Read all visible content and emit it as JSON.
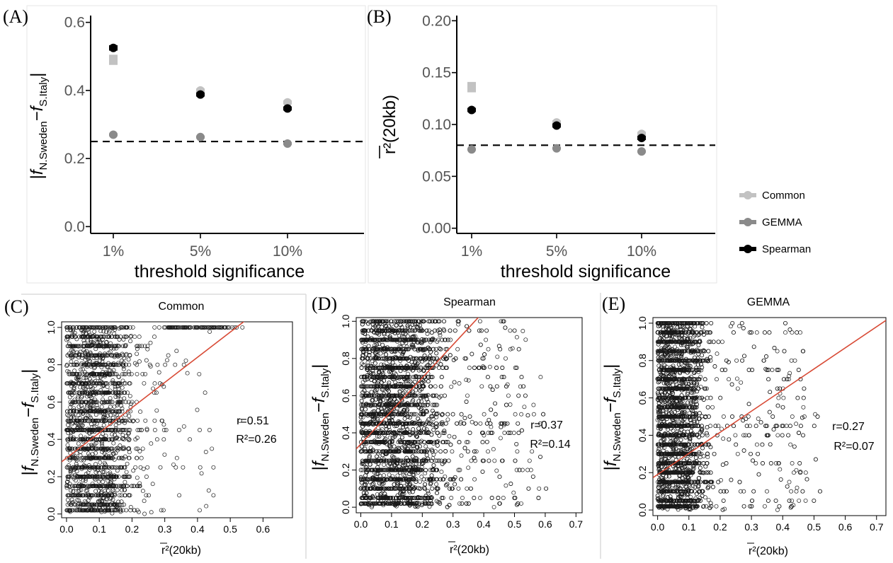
{
  "figure": {
    "panel_letters": [
      "(A)",
      "(B)",
      "(C)",
      "(D)",
      "(E)"
    ]
  },
  "legend": {
    "items": [
      {
        "label": "Common",
        "color": "#c2c2c2"
      },
      {
        "label": "GEMMA",
        "color": "#8a8a8a"
      },
      {
        "label": "Spearman",
        "color": "#000000"
      }
    ]
  },
  "chart_data": [
    {
      "panel": "(A)",
      "type": "scatter",
      "xlabel": "threshold significance",
      "ylabel_parts": {
        "abs": "|",
        "f": "f",
        "sub1": "N.Sweden",
        "minus": "−",
        "sub2": "S.Italy",
        "end": "|"
      },
      "categories": [
        "1%",
        "5%",
        "10%"
      ],
      "ylim": [
        -0.02,
        0.62
      ],
      "yticks": [
        "0.0",
        "0.2",
        "0.4",
        "0.6"
      ],
      "ytick_values": [
        0.0,
        0.2,
        0.4,
        0.6
      ],
      "reference_line": 0.25,
      "series": [
        {
          "name": "Common",
          "color": "#c2c2c2",
          "values": [
            0.49,
            0.4,
            0.365
          ],
          "errors": [
            0.015,
            0.006,
            0.006
          ]
        },
        {
          "name": "GEMMA",
          "color": "#8a8a8a",
          "values": [
            0.27,
            0.263,
            0.244
          ],
          "errors": [
            0.004,
            0.004,
            0.004
          ]
        },
        {
          "name": "Spearman",
          "color": "#000000",
          "values": [
            0.525,
            0.388,
            0.347
          ],
          "errors": [
            0.008,
            0.006,
            0.006
          ]
        }
      ]
    },
    {
      "panel": "(B)",
      "type": "scatter",
      "xlabel": "threshold significance",
      "ylabel": "r²(20kb)",
      "categories": [
        "1%",
        "5%",
        "10%"
      ],
      "ylim": [
        -0.005,
        0.205
      ],
      "yticks": [
        "0.00",
        "0.05",
        "0.10",
        "0.15",
        "0.20"
      ],
      "ytick_values": [
        0.0,
        0.05,
        0.1,
        0.15,
        0.2
      ],
      "reference_line": 0.08,
      "series": [
        {
          "name": "Common",
          "color": "#c2c2c2",
          "values": [
            0.136,
            0.102,
            0.091
          ],
          "errors": [
            0.005,
            0.002,
            0.002
          ]
        },
        {
          "name": "GEMMA",
          "color": "#8a8a8a",
          "values": [
            0.076,
            0.077,
            0.074
          ],
          "errors": [
            0.001,
            0.001,
            0.001
          ]
        },
        {
          "name": "Spearman",
          "color": "#000000",
          "values": [
            0.114,
            0.099,
            0.087
          ],
          "errors": [
            0.002,
            0.002,
            0.002
          ]
        }
      ]
    },
    {
      "panel": "(C)",
      "type": "scatter",
      "title": "Common",
      "xlabel": "r²(20kb)",
      "xlim": [
        -0.015,
        0.69
      ],
      "ylim": [
        -0.02,
        1.03
      ],
      "xticks": [
        0.0,
        0.1,
        0.2,
        0.3,
        0.4,
        0.5,
        0.6
      ],
      "xtick_labels": [
        "0.0",
        "0.1",
        "0.2",
        "0.3",
        "0.4",
        "0.5",
        "0.6"
      ],
      "yticks": [
        0.0,
        0.2,
        0.4,
        0.6,
        0.8,
        1.0
      ],
      "ytick_labels": [
        "0.0",
        "0.2",
        "0.4",
        "0.6",
        "0.8",
        "1.0"
      ],
      "regression": {
        "intercept": 0.3,
        "slope": 1.35,
        "color": "#d84a35"
      },
      "annotation_r": "r=0.51",
      "annotation_R2": "R²=0.26",
      "summary": {
        "n_points_approx": 2600,
        "bulk_x_range": [
          0.0,
          0.2
        ],
        "y_range": [
          0.0,
          1.0
        ],
        "high_ld_cluster_at_y": 1.0
      }
    },
    {
      "panel": "(D)",
      "type": "scatter",
      "title": "Spearman",
      "xlabel": "r²(20kb)",
      "xlim": [
        -0.015,
        0.72
      ],
      "ylim": [
        -0.03,
        1.02
      ],
      "xticks": [
        0.0,
        0.1,
        0.2,
        0.3,
        0.4,
        0.5,
        0.6,
        0.7
      ],
      "xtick_labels": [
        "0.0",
        "0.1",
        "0.2",
        "0.3",
        "0.4",
        "0.5",
        "0.6",
        "0.7"
      ],
      "yticks": [
        0.0,
        0.2,
        0.4,
        0.6,
        0.8,
        1.0
      ],
      "ytick_labels": [
        "0.0",
        "0.2",
        "0.4",
        "0.6",
        "0.8",
        "1.0"
      ],
      "regression": {
        "intercept": 0.34,
        "slope": 1.78,
        "color": "#d84a35"
      },
      "annotation_r": "r=0.37",
      "annotation_R2": "R²=0.14",
      "summary": {
        "n_points_approx": 6000,
        "bulk_x_range": [
          0.0,
          0.3
        ],
        "y_range": [
          0.0,
          1.0
        ]
      }
    },
    {
      "panel": "(E)",
      "type": "scatter",
      "title": "GEMMA",
      "xlabel": "r²(20kb)",
      "xlim": [
        -0.015,
        0.73
      ],
      "ylim": [
        -0.03,
        1.03
      ],
      "xticks": [
        0.0,
        0.1,
        0.2,
        0.3,
        0.4,
        0.5,
        0.6,
        0.7
      ],
      "xtick_labels": [
        "0.0",
        "0.1",
        "0.2",
        "0.3",
        "0.4",
        "0.5",
        "0.6",
        "0.7"
      ],
      "yticks": [
        0.0,
        0.2,
        0.4,
        0.6,
        0.8,
        1.0
      ],
      "ytick_labels": [
        "0.0",
        "0.2",
        "0.4",
        "0.6",
        "0.8",
        "1.0"
      ],
      "regression": {
        "intercept": 0.19,
        "slope": 1.13,
        "color": "#d84a35"
      },
      "annotation_r": "r=0.27",
      "annotation_R2": "R²=0.07",
      "summary": {
        "n_points_approx": 5000,
        "bulk_x_range": [
          0.0,
          0.15
        ],
        "y_range": [
          0.0,
          1.0
        ]
      }
    }
  ]
}
